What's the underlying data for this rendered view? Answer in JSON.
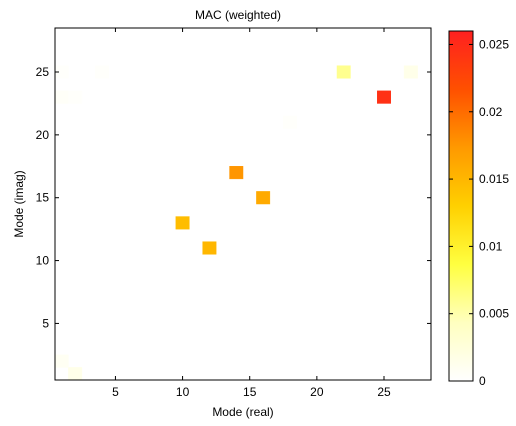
{
  "chart_data": {
    "type": "heatmap",
    "title": "MAC (weighted)",
    "xlabel": "Mode (real)",
    "ylabel": "Mode (imag)",
    "x_range": [
      0.5,
      28.5
    ],
    "y_range": [
      0.5,
      28.5
    ],
    "x_ticks": [
      5,
      10,
      15,
      20,
      25
    ],
    "y_ticks": [
      5,
      10,
      15,
      20,
      25
    ],
    "colorbar": {
      "range": [
        0,
        0.026
      ],
      "ticks": [
        0,
        0.005,
        0.01,
        0.015,
        0.02,
        0.025
      ],
      "tick_labels": [
        "0",
        "0.005",
        "0.01",
        "0.015",
        "0.02",
        "0.025"
      ],
      "colormap": [
        "#ffffff",
        "#ffffc0",
        "#ffff40",
        "#ffd000",
        "#ff9900",
        "#ff5000",
        "#ff2020"
      ]
    },
    "cells": [
      {
        "x": 2,
        "y": 1,
        "value": 0.0015
      },
      {
        "x": 1,
        "y": 2,
        "value": 0.0008
      },
      {
        "x": 12,
        "y": 11,
        "value": 0.015
      },
      {
        "x": 10,
        "y": 13,
        "value": 0.0145
      },
      {
        "x": 16,
        "y": 15,
        "value": 0.016
      },
      {
        "x": 14,
        "y": 17,
        "value": 0.0175
      },
      {
        "x": 18,
        "y": 21,
        "value": 0.0003
      },
      {
        "x": 1,
        "y": 23,
        "value": 0.0005
      },
      {
        "x": 2,
        "y": 23,
        "value": 0.0003
      },
      {
        "x": 25,
        "y": 23,
        "value": 0.0245
      },
      {
        "x": 1,
        "y": 25,
        "value": 0.0003
      },
      {
        "x": 4,
        "y": 25,
        "value": 0.0003
      },
      {
        "x": 22,
        "y": 25,
        "value": 0.006
      },
      {
        "x": 27,
        "y": 25,
        "value": 0.0015
      }
    ]
  }
}
